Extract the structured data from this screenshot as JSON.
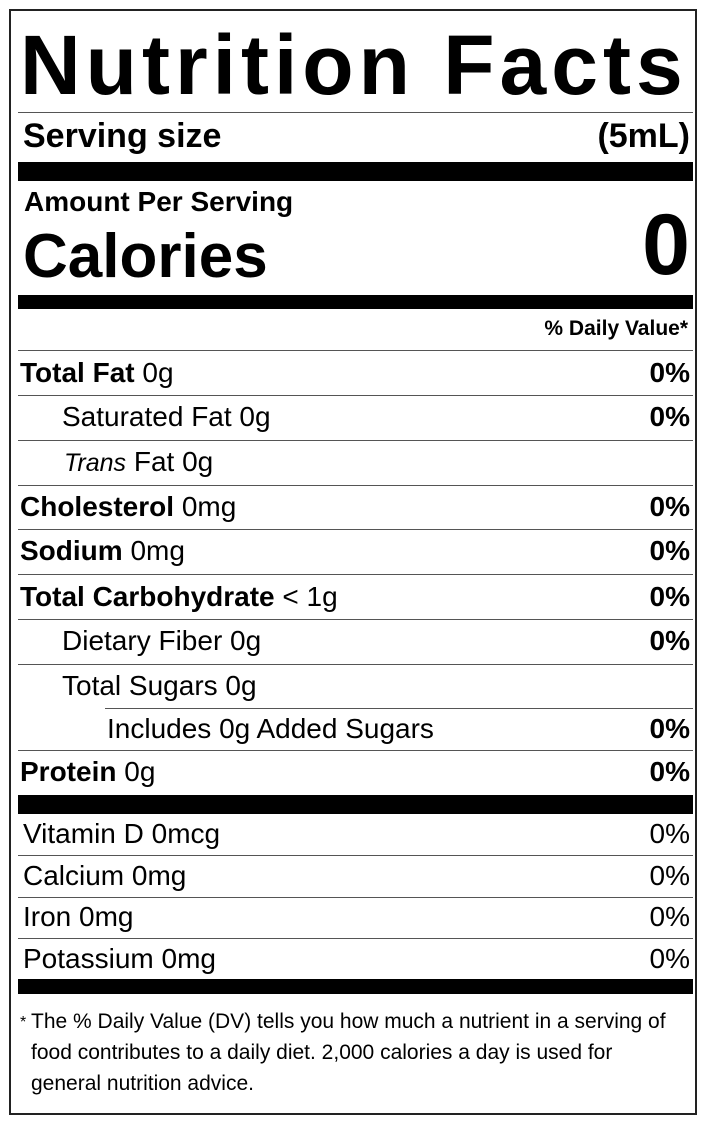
{
  "title": "Nutrition Facts",
  "serving": {
    "label": "Serving size",
    "value": "(5mL)"
  },
  "amount_per_serving": "Amount Per Serving",
  "calories": {
    "label": "Calories",
    "value": "0"
  },
  "daily_value_header": "% Daily Value*",
  "nutrients": [
    {
      "name": "Total Fat",
      "amount": "0g",
      "dv": "0%"
    },
    {
      "name": "Saturated Fat 0g",
      "dv": "0%"
    },
    {
      "name": "Trans",
      "amount": "Fat 0g"
    },
    {
      "name": "Cholesterol",
      "amount": "0mg",
      "dv": "0%"
    },
    {
      "name": "Sodium",
      "amount": "0mg",
      "dv": "0%"
    },
    {
      "name": "Total Carbohydrate",
      "amount": "< 1g",
      "dv": "0%"
    },
    {
      "name": "Dietary Fiber 0g",
      "dv": "0%"
    },
    {
      "name": "Total Sugars 0g"
    },
    {
      "name": "Includes 0g Added Sugars",
      "dv": "0%"
    },
    {
      "name": "Protein",
      "amount": "0g",
      "dv": "0%"
    }
  ],
  "vitamins": [
    {
      "name": "Vitamin D 0mcg",
      "dv": "0%"
    },
    {
      "name": "Calcium 0mg",
      "dv": "0%"
    },
    {
      "name": "Iron 0mg",
      "dv": "0%"
    },
    {
      "name": "Potassium 0mg",
      "dv": "0%"
    }
  ],
  "footnote": {
    "mark": "*",
    "text": "The % Daily Value (DV) tells you how much a nutrient in a serving of food contributes to a daily diet. 2,000 calories a day is used for general nutrition advice."
  }
}
